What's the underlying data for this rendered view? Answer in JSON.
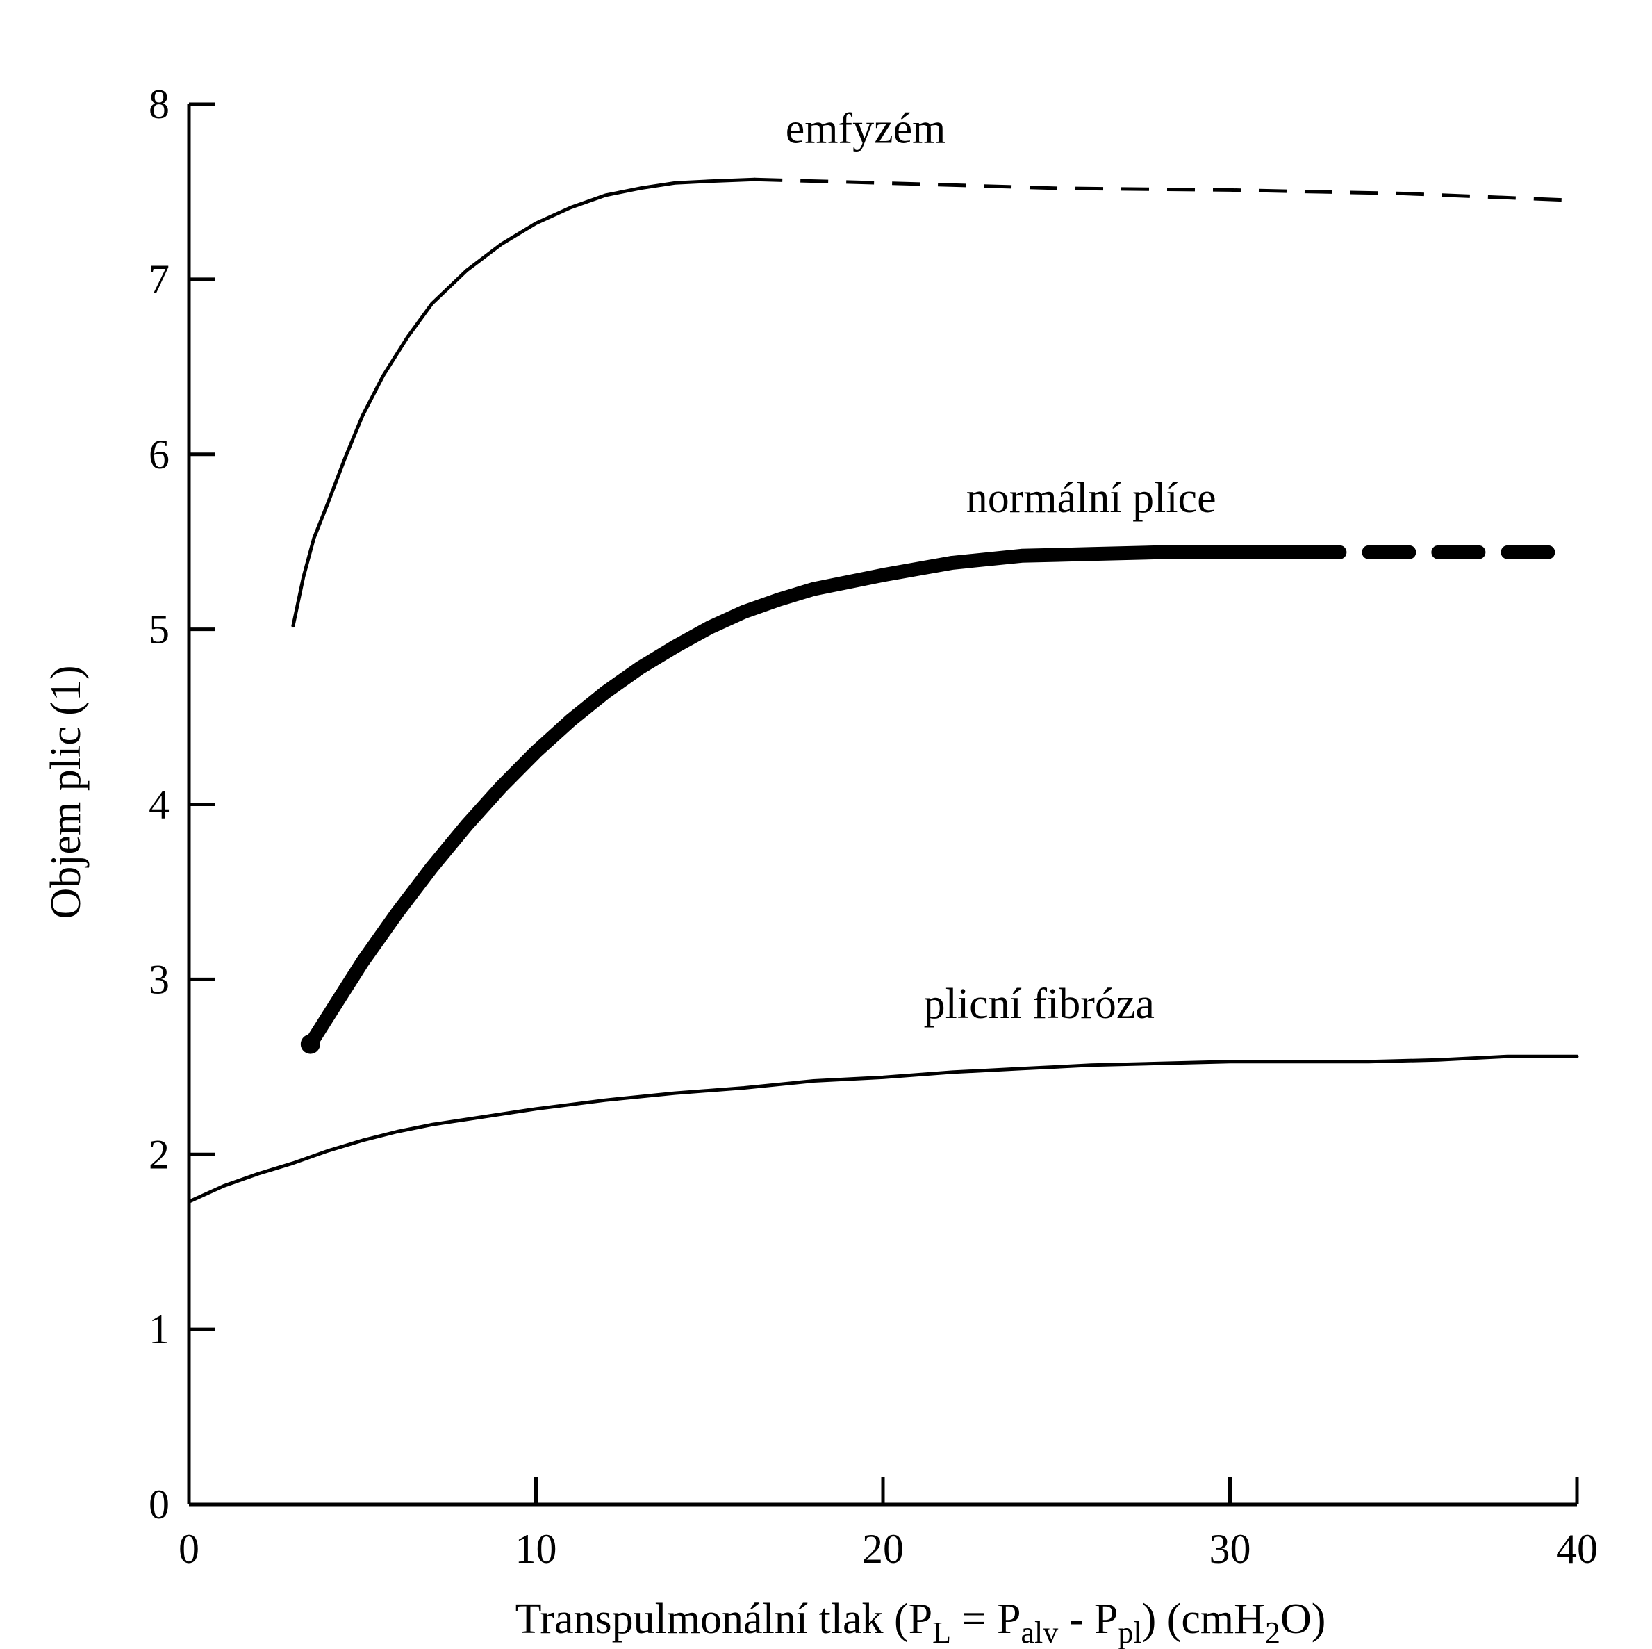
{
  "chart_data": {
    "type": "line",
    "title": "",
    "xlabel": {
      "parts": [
        {
          "text": "Transpulmonální tlak (P"
        },
        {
          "text": "L",
          "sub": true
        },
        {
          "text": " = P"
        },
        {
          "text": "alv",
          "sub": true
        },
        {
          "text": " - P"
        },
        {
          "text": "pl",
          "sub": true
        },
        {
          "text": ") (cmH"
        },
        {
          "text": "2",
          "sub": true
        },
        {
          "text": "O)"
        }
      ]
    },
    "ylabel": "Objem plic (1)",
    "xlim": [
      0,
      40
    ],
    "ylim": [
      0,
      8
    ],
    "x_ticks": [
      0,
      10,
      20,
      30,
      40
    ],
    "y_ticks": [
      0,
      1,
      2,
      3,
      4,
      5,
      6,
      7,
      8
    ],
    "grid": false,
    "series": [
      {
        "name": "emfyzém",
        "style": "thin",
        "label_at": [
          19.5,
          7.78
        ],
        "points": [
          [
            3.0,
            5.02
          ],
          [
            3.3,
            5.3
          ],
          [
            3.6,
            5.52
          ],
          [
            4.0,
            5.72
          ],
          [
            4.5,
            5.98
          ],
          [
            5.0,
            6.22
          ],
          [
            5.6,
            6.45
          ],
          [
            6.3,
            6.67
          ],
          [
            7.0,
            6.86
          ],
          [
            8.0,
            7.05
          ],
          [
            9.0,
            7.2
          ],
          [
            10.0,
            7.32
          ],
          [
            11.0,
            7.41
          ],
          [
            12.0,
            7.48
          ],
          [
            13.0,
            7.52
          ],
          [
            14.0,
            7.55
          ],
          [
            15.0,
            7.56
          ],
          [
            16.3,
            7.57
          ]
        ],
        "dashed_points": [
          [
            16.3,
            7.57
          ],
          [
            20.0,
            7.55
          ],
          [
            25.0,
            7.52
          ],
          [
            30.0,
            7.51
          ],
          [
            35.0,
            7.49
          ],
          [
            40.0,
            7.45
          ]
        ]
      },
      {
        "name": "normální plíce",
        "style": "bold",
        "label_at": [
          26,
          5.67
        ],
        "points": [
          [
            3.5,
            2.63
          ],
          [
            4.2,
            2.85
          ],
          [
            5.0,
            3.1
          ],
          [
            6.0,
            3.38
          ],
          [
            7.0,
            3.64
          ],
          [
            8.0,
            3.88
          ],
          [
            9.0,
            4.1
          ],
          [
            10.0,
            4.3
          ],
          [
            11.0,
            4.48
          ],
          [
            12.0,
            4.64
          ],
          [
            13.0,
            4.78
          ],
          [
            14.0,
            4.9
          ],
          [
            15.0,
            5.01
          ],
          [
            16.0,
            5.1
          ],
          [
            17.0,
            5.17
          ],
          [
            18.0,
            5.23
          ],
          [
            20.0,
            5.31
          ],
          [
            22.0,
            5.38
          ],
          [
            24.0,
            5.42
          ],
          [
            26.0,
            5.43
          ],
          [
            28.0,
            5.44
          ],
          [
            30.0,
            5.44
          ],
          [
            32.0,
            5.44
          ]
        ],
        "dashed_points": [
          [
            32.0,
            5.44
          ],
          [
            40.0,
            5.44
          ]
        ]
      },
      {
        "name": "plicní fibróza",
        "style": "thin",
        "label_at": [
          24.5,
          2.78
        ],
        "points": [
          [
            0.0,
            1.73
          ],
          [
            1.0,
            1.82
          ],
          [
            2.0,
            1.89
          ],
          [
            3.0,
            1.95
          ],
          [
            4.0,
            2.02
          ],
          [
            5.0,
            2.08
          ],
          [
            6.0,
            2.13
          ],
          [
            7.0,
            2.17
          ],
          [
            8.0,
            2.2
          ],
          [
            10.0,
            2.26
          ],
          [
            12.0,
            2.31
          ],
          [
            14.0,
            2.35
          ],
          [
            16.0,
            2.38
          ],
          [
            18.0,
            2.42
          ],
          [
            20.0,
            2.44
          ],
          [
            22.0,
            2.47
          ],
          [
            24.0,
            2.49
          ],
          [
            26.0,
            2.51
          ],
          [
            28.0,
            2.52
          ],
          [
            30.0,
            2.53
          ],
          [
            32.0,
            2.53
          ],
          [
            34.0,
            2.53
          ],
          [
            36.0,
            2.54
          ],
          [
            38.0,
            2.56
          ],
          [
            40.0,
            2.56
          ]
        ]
      }
    ]
  }
}
